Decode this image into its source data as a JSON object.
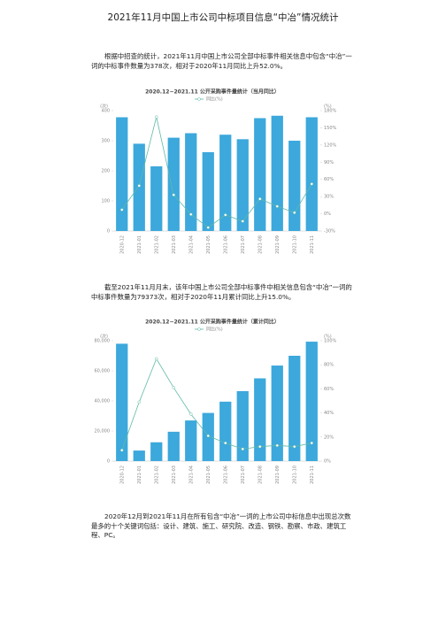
{
  "title": "2021年11月中国上市公司中标项目信息“中冶”情况统计",
  "paragraphs": [
    "根据中招查的统计，2021年11月中国上市公司全部中标事件相关信息中包含“中冶”一词的中标事件数量为378次，相对于2020年11月同比上升52.0%。",
    "截至2021年11月月末，该年中国上市公司全部中标事件中相关信息包含“中冶”一词的中标事件数量为79373次，相对于2020年11月累计同比上升15.0%。",
    "2020年12月到2021年11月在所有包含“中冶”一词的上市公司中标信息中出现总次数最多的十个关键词包括：设计、建筑、施工、研究院、改造、钢铁、勘察、市政、建筑工程、PC。"
  ],
  "chart_data": [
    {
      "type": "bar",
      "title": "2020.12~2021.11 公开采购事件量统计（当月同比）",
      "ylabel": "(次)",
      "y2label": "(%)",
      "categories": [
        "2020-12",
        "2021-01",
        "2021-02",
        "2021-03",
        "2021-04",
        "2021-05",
        "2021-06",
        "2021-07",
        "2021-08",
        "2021-09",
        "2021-10",
        "2021-11"
      ],
      "series": [
        {
          "color": "#3ca8dc",
          "values": [
            378,
            290,
            215,
            310,
            325,
            262,
            320,
            305,
            375,
            383,
            300,
            378
          ]
        },
        {
          "name": "同比(%)",
          "type": "line",
          "axis": "y2",
          "color": "#5fb9a6",
          "values": [
            7,
            49,
            169,
            33,
            -1,
            -24,
            -2,
            -13,
            26,
            13,
            2,
            52
          ]
        }
      ],
      "ylim": [
        0,
        400
      ],
      "yticks": [
        0,
        100,
        200,
        300,
        400
      ],
      "y2lim": [
        -30,
        180
      ],
      "y2ticks": [
        {
          "value": -30,
          "label": "-30%"
        },
        {
          "value": 0,
          "label": "0%"
        },
        {
          "value": 30,
          "label": "30%"
        },
        {
          "value": 60,
          "label": "60%"
        },
        {
          "value": 90,
          "label": "90%"
        },
        {
          "value": 120,
          "label": "120%"
        },
        {
          "value": 150,
          "label": "150%"
        },
        {
          "value": 180,
          "label": "180%"
        }
      ]
    },
    {
      "type": "bar",
      "title": "2020.12~2021.11 公开采购事件量统计（累计同比）",
      "ylabel": "(次)",
      "y2label": "(%)",
      "categories": [
        "2020-12",
        "2021-01",
        "2021-02",
        "2021-03",
        "2021-04",
        "2021-05",
        "2021-06",
        "2021-07",
        "2021-08",
        "2021-09",
        "2021-10",
        "2021-11"
      ],
      "series": [
        {
          "color": "#3ca8dc",
          "values": [
            78000,
            7000,
            12500,
            19500,
            27000,
            32000,
            39500,
            46500,
            55000,
            63500,
            70000,
            79373
          ]
        },
        {
          "name": "同比(%)",
          "type": "line",
          "axis": "y2",
          "color": "#5fb9a6",
          "values": [
            9,
            49,
            85,
            61,
            39,
            21,
            15,
            10,
            12,
            13,
            12,
            15
          ]
        }
      ],
      "ylim": [
        0,
        80000
      ],
      "yticks": [
        0,
        {
          "value": 20000,
          "label": "20,000"
        },
        {
          "value": 40000,
          "label": "40,000"
        },
        {
          "value": 60000,
          "label": "60,000"
        },
        {
          "value": 80000,
          "label": "80,000"
        }
      ],
      "y2lim": [
        0,
        100
      ],
      "y2ticks": [
        {
          "value": 0,
          "label": "0%"
        },
        {
          "value": 20,
          "label": "20%"
        },
        {
          "value": 40,
          "label": "40%"
        },
        {
          "value": 60,
          "label": "60%"
        },
        {
          "value": 80,
          "label": "80%"
        },
        {
          "value": 100,
          "label": "100%"
        }
      ]
    }
  ]
}
